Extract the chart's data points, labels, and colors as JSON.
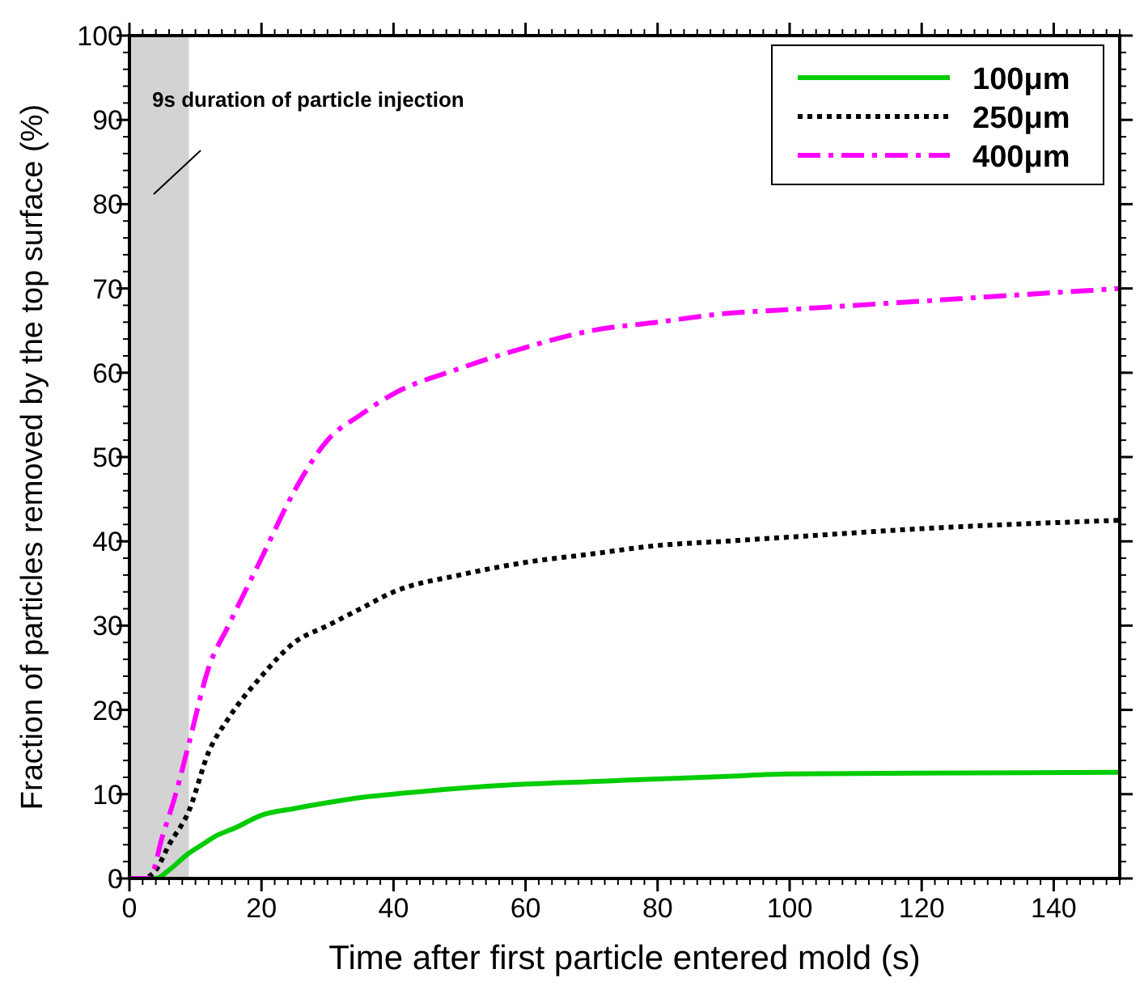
{
  "chart_data": {
    "type": "line",
    "xlabel": "Time after first particle entered mold (s)",
    "ylabel": "Fraction of particles removed by the top surface (%)",
    "xlim": [
      0,
      150
    ],
    "ylim": [
      0,
      100
    ],
    "xticks": [
      0,
      20,
      40,
      60,
      80,
      100,
      120,
      140
    ],
    "yticks": [
      0,
      10,
      20,
      30,
      40,
      50,
      60,
      70,
      80,
      90,
      100
    ],
    "grid": false,
    "legend": "top right",
    "bands": [
      {
        "axis": "x",
        "from": 0,
        "to": 9,
        "color": "#d3d3d3"
      }
    ],
    "annotations": [
      "9s duration of particle injection"
    ],
    "series": [
      {
        "name": "100μm",
        "color": "#00cc00",
        "line_style": "solid",
        "x": [
          0,
          4,
          6,
          9,
          11,
          13,
          16,
          20,
          25,
          30,
          35,
          40,
          50,
          60,
          70,
          80,
          90,
          100,
          120,
          150
        ],
        "values": [
          0,
          0,
          1,
          3,
          4,
          5,
          6,
          7.5,
          8.3,
          9,
          9.6,
          10,
          10.7,
          11.2,
          11.5,
          11.8,
          12.1,
          12.4,
          12.5,
          12.6
        ]
      },
      {
        "name": "250μm",
        "color": "#000000",
        "line_style": "dotted",
        "x": [
          0,
          2,
          4,
          6,
          9,
          12,
          15,
          20,
          25,
          30,
          35,
          40,
          50,
          60,
          70,
          80,
          90,
          100,
          120,
          150
        ],
        "values": [
          0,
          0,
          1,
          4,
          8,
          15,
          19,
          24,
          28,
          30,
          32,
          34,
          36,
          37.5,
          38.5,
          39.5,
          40,
          40.5,
          41.5,
          42.5
        ]
      },
      {
        "name": "400μm",
        "color": "#ff00ff",
        "line_style": "dashdot",
        "x": [
          0,
          3,
          5,
          7,
          9,
          12,
          15,
          20,
          25,
          30,
          35,
          40,
          50,
          60,
          70,
          80,
          90,
          100,
          120,
          150
        ],
        "values": [
          0,
          0,
          5,
          10,
          16,
          25,
          30,
          38,
          46,
          52,
          55,
          57.5,
          60.5,
          63,
          65,
          66,
          67,
          67.5,
          68.5,
          70
        ]
      }
    ]
  }
}
